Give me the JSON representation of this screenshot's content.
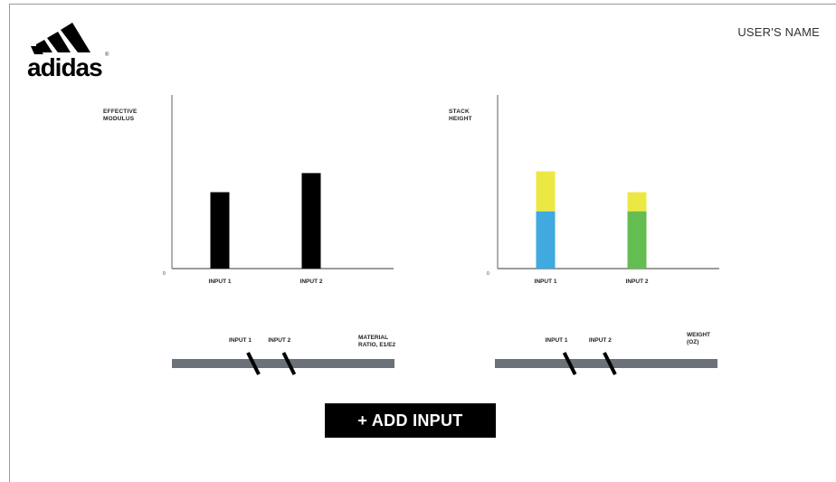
{
  "header": {
    "logo_text": "adidas",
    "logo_mark": "®",
    "user_name": "USER'S NAME"
  },
  "colors": {
    "bar": "#000000",
    "stack_top": "#ece843",
    "stack_blue": "#3fa9e0",
    "stack_green": "#64bd51",
    "track": "#6b7178"
  },
  "chart_data": [
    {
      "type": "bar",
      "ylabel": "EFFECTIVE\nMODULUS",
      "zero_label": "0",
      "categories": [
        "INPUT 1",
        "INPUT 2"
      ],
      "values": [
        0.44,
        0.55
      ],
      "ylim": [
        0,
        1
      ]
    },
    {
      "type": "bar",
      "stacked": true,
      "ylabel": "STACK\nHEIGHT",
      "zero_label": "0",
      "categories": [
        "INPUT 1",
        "INPUT 2"
      ],
      "series": [
        {
          "values": [
            0.33,
            0.33
          ],
          "colors": [
            "#3fa9e0",
            "#64bd51"
          ]
        },
        {
          "values": [
            0.23,
            0.11
          ],
          "colors": [
            "#ece843",
            "#ece843"
          ]
        }
      ],
      "ylim": [
        0,
        1
      ]
    }
  ],
  "sliders": [
    {
      "title": "MATERIAL\nRATIO, E1/E2",
      "inputs": [
        {
          "label": "INPUT 1",
          "value": 0.37
        },
        {
          "label": "INPUT 2",
          "value": 0.53
        }
      ]
    },
    {
      "title": "WEIGHT\n(OZ)",
      "inputs": [
        {
          "label": "INPUT 1",
          "value": 0.34
        },
        {
          "label": "INPUT 2",
          "value": 0.52
        }
      ]
    }
  ],
  "actions": {
    "add_input_label": "+ ADD INPUT"
  }
}
